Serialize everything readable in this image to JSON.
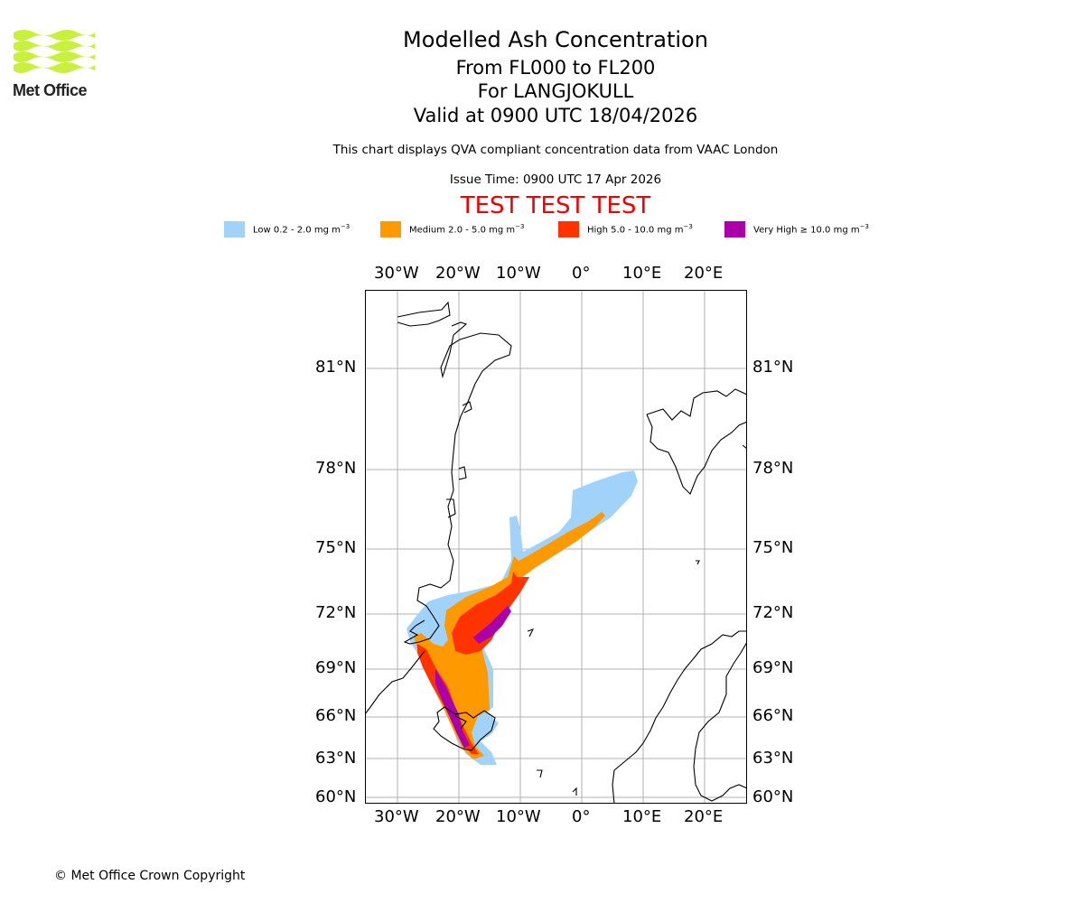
{
  "logo": {
    "text": "Met Office",
    "color": "#c8f03c"
  },
  "header": {
    "title": "Modelled Ash Concentration",
    "levels": "From FL000 to FL200",
    "location": "For LANGJOKULL",
    "valid": "Valid at 0900 UTC 18/04/2026",
    "description": "This chart displays QVA compliant concentration data from VAAC London",
    "issue_time": "Issue Time: 0900 UTC 17 Apr 2026",
    "test_banner": "TEST TEST TEST"
  },
  "legend": [
    {
      "label": "Low 0.2 - 2.0 mg m",
      "exp": "−3",
      "color": "#a0d2fa"
    },
    {
      "label": "Medium 2.0 - 5.0 mg m",
      "exp": "−3",
      "color": "#ff9900"
    },
    {
      "label": "High 5.0 - 10.0 mg m",
      "exp": "−3",
      "color": "#ff3300"
    },
    {
      "label": "Very High  ≥  10.0 mg m",
      "exp": "−3",
      "color": "#aa00aa"
    }
  ],
  "axes": {
    "lon_ticks": [
      "30°W",
      "20°W",
      "10°W",
      "0°",
      "10°E",
      "20°E"
    ],
    "lat_ticks": [
      "81°N",
      "78°N",
      "75°N",
      "72°N",
      "69°N",
      "66°N",
      "63°N",
      "60°N"
    ],
    "grid": true
  },
  "footer": {
    "copyright": "© Met Office Crown Copyright"
  }
}
